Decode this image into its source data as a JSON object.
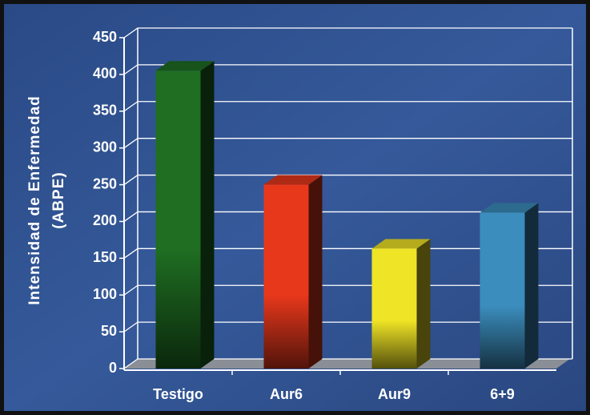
{
  "chart_data": {
    "type": "bar3d",
    "ylabel": [
      "Intensidad de Enfermedad",
      "(ABPE)"
    ],
    "categories": [
      "Testigo",
      "Aur6",
      "Aur9",
      "6+9"
    ],
    "values": [
      405,
      250,
      163,
      212
    ],
    "colors": [
      "#1f6e22",
      "#e8381c",
      "#f0e426",
      "#3b8dbd"
    ],
    "ylim": [
      0,
      450
    ],
    "yticks": [
      0,
      50,
      100,
      150,
      200,
      250,
      300,
      350,
      400,
      450
    ],
    "grid": true
  }
}
